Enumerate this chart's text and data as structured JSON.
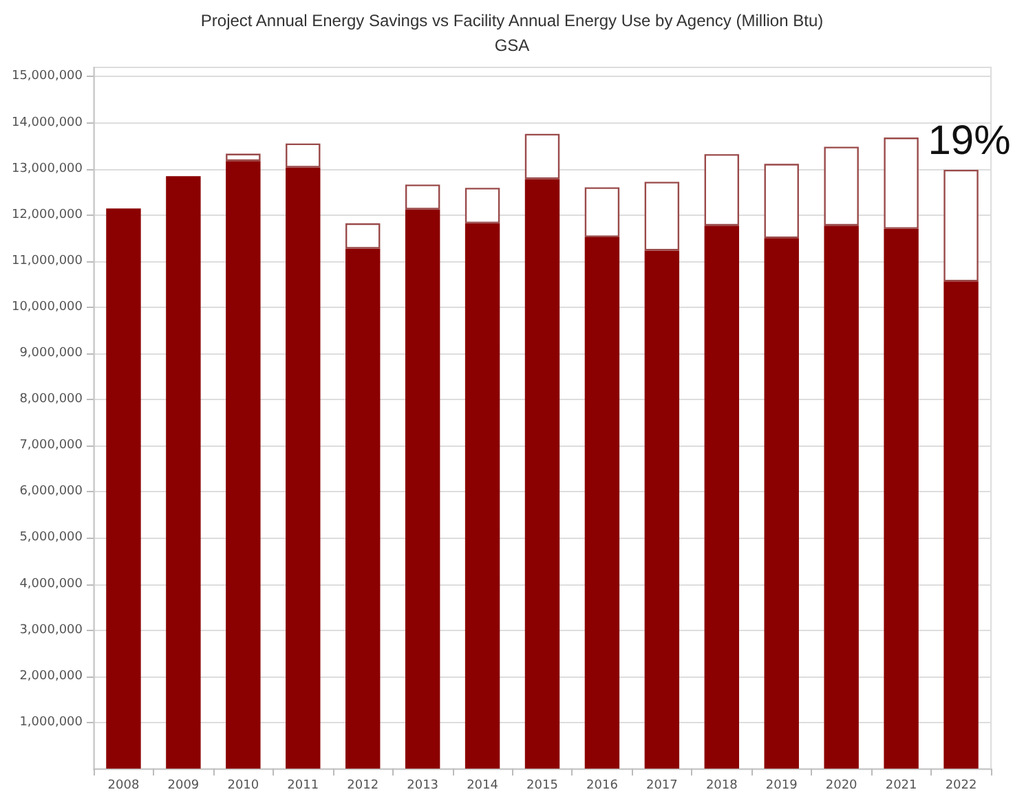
{
  "chart_data": {
    "type": "bar",
    "title": "Project Annual Energy Savings vs Facility Annual Energy Use by Agency (Million Btu)",
    "subtitle": "GSA",
    "categories": [
      "2008",
      "2009",
      "2010",
      "2011",
      "2012",
      "2013",
      "2014",
      "2015",
      "2016",
      "2017",
      "2018",
      "2019",
      "2020",
      "2021",
      "2022"
    ],
    "stacked": true,
    "series": [
      {
        "color": "#8b0000",
        "values": [
          12140000,
          12840000,
          13170000,
          13030000,
          11270000,
          12120000,
          11820000,
          12780000,
          11520000,
          11230000,
          11770000,
          11500000,
          11770000,
          11700000,
          10560000
        ]
      },
      {
        "color": "#ffffff",
        "values": [
          null,
          null,
          160000,
          520000,
          550000,
          540000,
          770000,
          980000,
          1080000,
          1490000,
          1550000,
          1610000,
          1710000,
          1980000,
          2420000
        ]
      }
    ],
    "ylim": [
      0,
      15200000
    ],
    "yticks": [
      {
        "value": 1000000,
        "label": "1,000,000"
      },
      {
        "value": 2000000,
        "label": "2,000,000"
      },
      {
        "value": 3000000,
        "label": "3,000,000"
      },
      {
        "value": 4000000,
        "label": "4,000,000"
      },
      {
        "value": 5000000,
        "label": "5,000,000"
      },
      {
        "value": 6000000,
        "label": "6,000,000"
      },
      {
        "value": 7000000,
        "label": "7,000,000"
      },
      {
        "value": 8000000,
        "label": "8,000,000"
      },
      {
        "value": 9000000,
        "label": "9,000,000"
      },
      {
        "value": 10000000,
        "label": "10,000,000"
      },
      {
        "value": 11000000,
        "label": "11,000,000"
      },
      {
        "value": 12000000,
        "label": "12,000,000"
      },
      {
        "value": 13000000,
        "label": "13,000,000"
      },
      {
        "value": 14000000,
        "label": "14,000,000"
      },
      {
        "value": 15000000,
        "label": "15,000,000"
      }
    ],
    "grid": "y",
    "annotations": [
      {
        "text": "19%",
        "x": "2022",
        "y": 12980000
      }
    ]
  }
}
